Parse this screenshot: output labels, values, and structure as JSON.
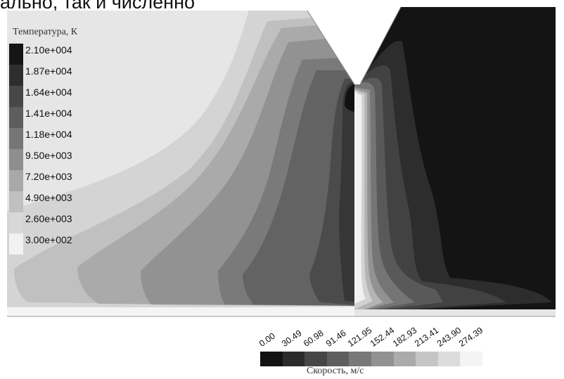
{
  "header_text": "ально, так и численно",
  "temperature_legend": {
    "title": "Температура, К",
    "labels": [
      "2.10e+004",
      "1.87e+004",
      "1.64e+004",
      "1.41e+004",
      "1.18e+004",
      "9.50e+003",
      "7.20e+003",
      "4.90e+003",
      "2.60e+003",
      "3.00e+002"
    ],
    "colors": [
      "#151515",
      "#2e2e2e",
      "#474747",
      "#5d5d5d",
      "#767676",
      "#8e8e8e",
      "#a8a8a8",
      "#c0c0c0",
      "#d8d8d8",
      "#f2f2f2"
    ]
  },
  "velocity_legend": {
    "title": "Скорость, м/с",
    "labels": [
      "0.00",
      "30.49",
      "60.98",
      "91.46",
      "121.95",
      "152.44",
      "182.93",
      "213.41",
      "243.90",
      "274.39"
    ],
    "colors": [
      "#121212",
      "#2b2b2b",
      "#474747",
      "#5f5f5f",
      "#787878",
      "#929292",
      "#ababab",
      "#c5c5c5",
      "#dcdcdc",
      "#f4f4f4"
    ]
  }
}
